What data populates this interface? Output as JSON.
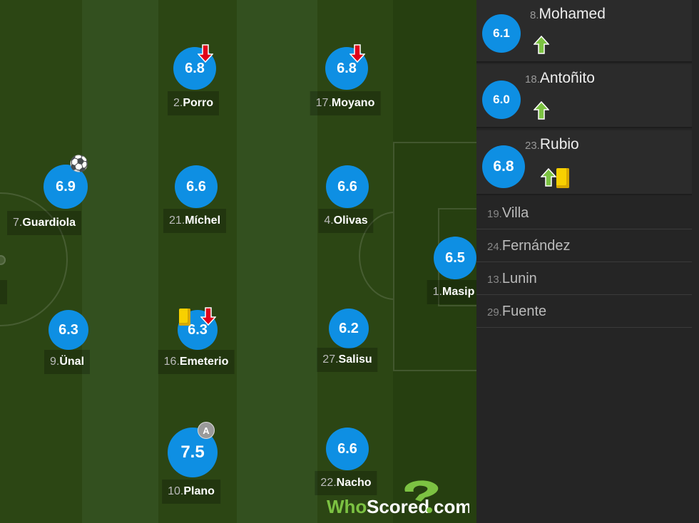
{
  "colors": {
    "rating": "#0e8fe3",
    "sub_arrow": "#7cc242",
    "off_arrow": "#e0001b",
    "yellow_card": "#f8d000"
  },
  "players": [
    {
      "num": "2.",
      "name": "Porro",
      "rating": "6.8",
      "icons": [
        "sub-off"
      ]
    },
    {
      "num": "17.",
      "name": "Moyano",
      "rating": "6.8",
      "icons": [
        "sub-off"
      ]
    },
    {
      "num": "7.",
      "name": "Guardiola",
      "rating": "6.9",
      "icons": [
        "goal"
      ]
    },
    {
      "num": "21.",
      "name": "Míchel",
      "rating": "6.6",
      "icons": []
    },
    {
      "num": "4.",
      "name": "Olivas",
      "rating": "6.6",
      "icons": []
    },
    {
      "num": "1.",
      "name": "Masip",
      "rating": "6.5",
      "icons": []
    },
    {
      "num": "9.",
      "name": "Ünal",
      "rating": "6.3",
      "icons": []
    },
    {
      "num": "16.",
      "name": "Emeterio",
      "rating": "6.3",
      "icons": [
        "yellow-card",
        "sub-off"
      ]
    },
    {
      "num": "27.",
      "name": "Salisu",
      "rating": "6.2",
      "icons": []
    },
    {
      "num": "10.",
      "name": "Plano",
      "rating": "7.5",
      "icons": [
        "captain"
      ]
    },
    {
      "num": "22.",
      "name": "Nacho",
      "rating": "6.6",
      "icons": []
    }
  ],
  "captain_badge": "A",
  "subs_used": [
    {
      "num": "8.",
      "name": "Mohamed",
      "rating": "6.1",
      "icons": [
        "sub-on"
      ]
    },
    {
      "num": "18.",
      "name": "Antoñito",
      "rating": "6.0",
      "icons": [
        "sub-on"
      ]
    },
    {
      "num": "23.",
      "name": "Rubio",
      "rating": "6.8",
      "icons": [
        "sub-on",
        "yellow-card"
      ]
    }
  ],
  "bench": [
    {
      "num": "19.",
      "name": "Villa"
    },
    {
      "num": "24.",
      "name": "Fernández"
    },
    {
      "num": "13.",
      "name": "Lunin"
    },
    {
      "num": "29.",
      "name": "Fuente"
    }
  ],
  "logo": {
    "who": "Who",
    "scored": "Scored",
    "com": ".com"
  }
}
